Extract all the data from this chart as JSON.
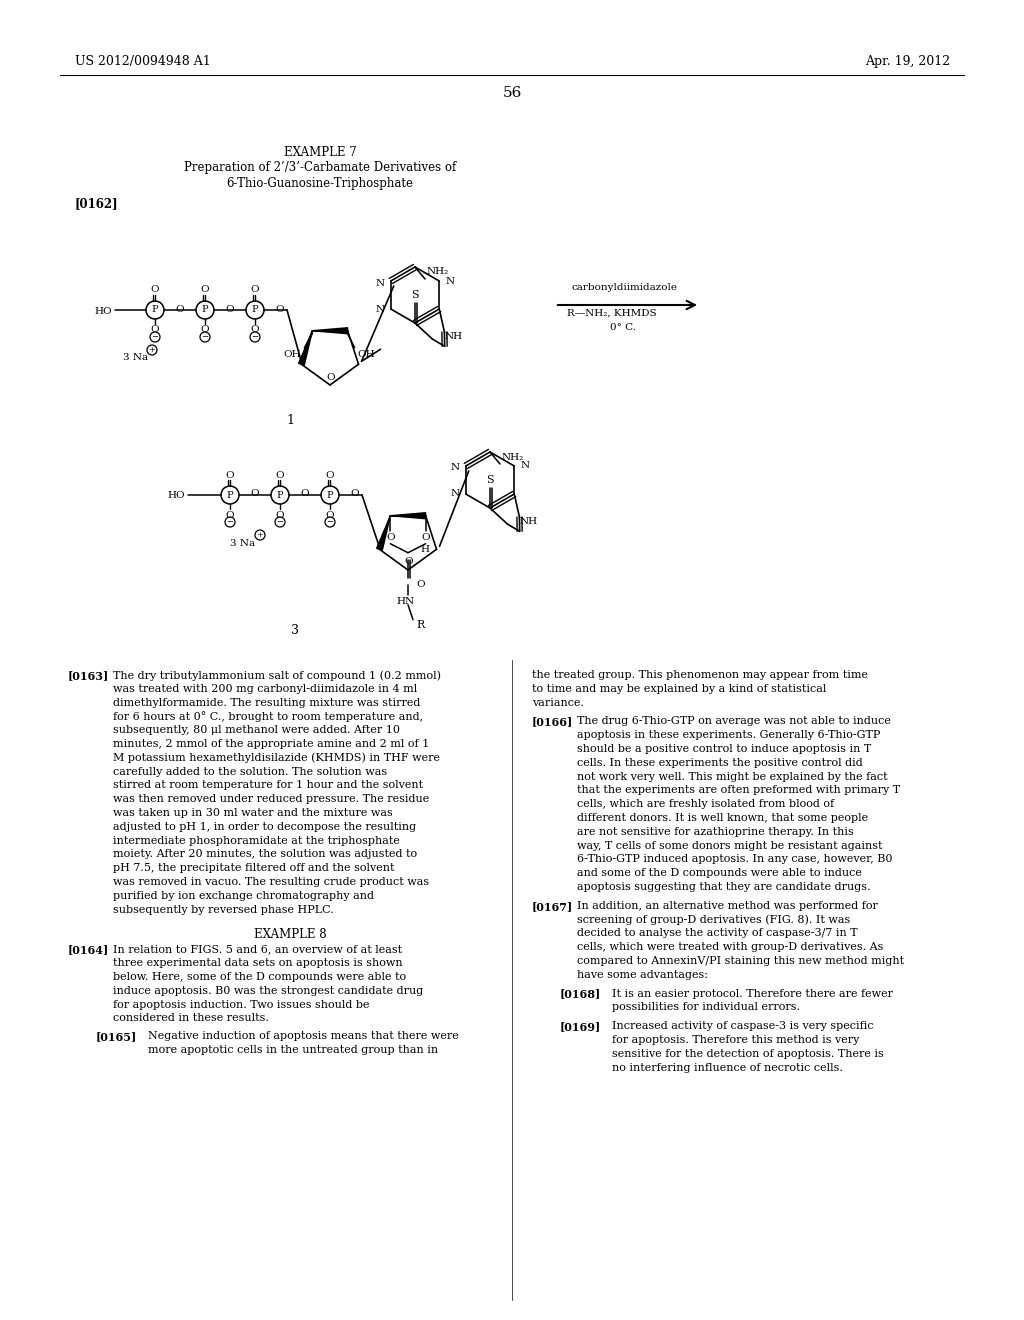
{
  "page_number": "56",
  "patent_number": "US 2012/0094948 A1",
  "patent_date": "Apr. 19, 2012",
  "title_line1": "EXAMPLE 7",
  "title_line2": "Preparation of 2’/3’-Carbamate Derivatives of",
  "title_line3": "6-Thio-Guanosine-Triphosphate",
  "para_tag1": "[0162]",
  "compound1_label": "1",
  "compound3_label": "3",
  "reaction_line1": "carbonyldiimidazole",
  "reaction_line2": "R—NH₂, KHMDS",
  "reaction_line3": "0° C.",
  "para163_tag": "[0163]",
  "para163_text": "The dry tributylammonium salt of compound 1 (0.2 mmol) was treated with 200 mg carbonyl-diimidazole in 4 ml dimethylformamide. The resulting mixture was stirred for 6 hours at 0° C., brought to room temperature and, subsequently, 80 μl methanol were added. After 10 minutes, 2 mmol of the appropriate amine and 2 ml of 1 M potassium hexamethyldisilazide (KHMDS) in THF were carefully added to the solution. The solution was stirred at room temperature for 1 hour and the solvent was then removed under reduced pressure. The residue was taken up in 30 ml water and the mixture was adjusted to pH 1, in order to decompose the resulting intermediate phosphoramidate at the triphosphate moiety. After 20 minutes, the solution was adjusted to pH 7.5, the precipitate filtered off and the solvent was removed in vacuo. The resulting crude product was purified by ion exchange chromatography and subsequently by reversed phase HPLC.",
  "example8_title": "EXAMPLE 8",
  "para164_tag": "[0164]",
  "para164_text": "In relation to FIGS. 5 and 6, an overview of at least three experimental data sets on apoptosis is shown below. Here, some of the D compounds were able to induce apoptosis. B0 was the strongest candidate drug for apoptosis induction. Two issues should be considered in these results.",
  "para165_tag": "[0165]",
  "para165_text": "Negative induction of apoptosis means that there were more apoptotic cells in the untreated group than in",
  "right_col_text1": "the treated group. This phenomenon may appear from time to time and may be explained by a kind of statistical variance.",
  "para166_tag": "[0166]",
  "para166_text": "The drug 6-Thio-GTP on average was not able to induce apoptosis in these experiments. Generally 6-Thio-GTP should be a positive control to induce apoptosis in T cells. In these experiments the positive control did not work very well. This might be explained by the fact that the experiments are often preformed with primary T cells, which are freshly isolated from blood of different donors. It is well known, that some people are not sensitive for azathioprine therapy. In this way, T cells of some donors might be resistant against 6-Thio-GTP induced apoptosis. In any case, however, B0 and some of the D compounds were able to induce apoptosis suggesting that they are candidate drugs.",
  "para167_tag": "[0167]",
  "para167_text": "In addition, an alternative method was performed for screening of group-D derivatives (FIG. 8). It was decided to analyse the activity of caspase-3/7 in T cells, which were treated with group-D derivatives. As compared to AnnexinV/PI staining this new method might have some advantages:",
  "para168_tag": "[0168]",
  "para168_text": "It is an easier protocol. Therefore there are fewer possibilities for individual errors.",
  "para169_tag": "[0169]",
  "para169_text": "Increased activity of caspase-3 is very specific for apoptosis. Therefore this method is very sensitive for the detection of apoptosis. There is no interfering influence of necrotic cells.",
  "bg_color": "#ffffff",
  "text_color": "#000000"
}
